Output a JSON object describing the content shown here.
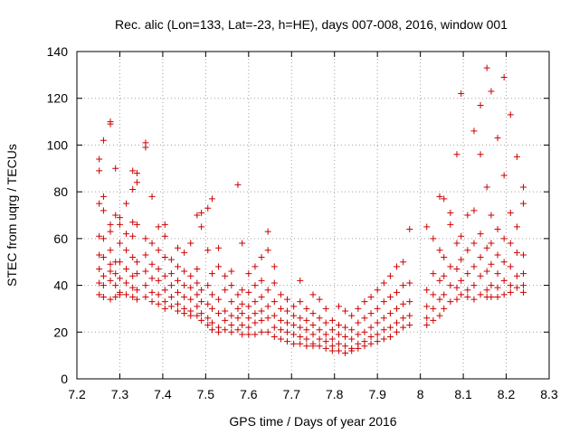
{
  "chart_data": {
    "type": "scatter",
    "title": "Rec. alic (Lon=133, Lat=-23, h=HE), days 007-008, 2016, window 001",
    "xlabel": "GPS time / Days of year 2016",
    "ylabel": "STEC from uqrg / TECUs",
    "xlim": [
      7.2,
      8.3
    ],
    "ylim": [
      0,
      140
    ],
    "grid": true,
    "marker": "+",
    "color": "#cc0000",
    "x_ticks": [
      "7.2",
      "7.3",
      "7.4",
      "7.5",
      "7.6",
      "7.7",
      "7.8",
      "7.9",
      "8",
      "8.1",
      "8.2",
      "8.3"
    ],
    "y_ticks": [
      "0",
      "20",
      "40",
      "60",
      "80",
      "100",
      "120",
      "140"
    ],
    "points": [
      [
        7.252,
        94
      ],
      [
        7.252,
        89
      ],
      [
        7.252,
        75
      ],
      [
        7.252,
        61
      ],
      [
        7.252,
        53
      ],
      [
        7.252,
        47
      ],
      [
        7.252,
        41
      ],
      [
        7.252,
        36
      ],
      [
        7.262,
        102
      ],
      [
        7.262,
        78
      ],
      [
        7.262,
        72
      ],
      [
        7.262,
        60
      ],
      [
        7.262,
        52
      ],
      [
        7.262,
        44
      ],
      [
        7.262,
        40
      ],
      [
        7.262,
        35
      ],
      [
        7.278,
        110
      ],
      [
        7.278,
        109
      ],
      [
        7.278,
        66
      ],
      [
        7.278,
        63
      ],
      [
        7.278,
        55
      ],
      [
        7.278,
        49
      ],
      [
        7.278,
        46
      ],
      [
        7.278,
        42
      ],
      [
        7.278,
        34
      ],
      [
        7.29,
        90
      ],
      [
        7.29,
        70
      ],
      [
        7.29,
        50
      ],
      [
        7.29,
        45
      ],
      [
        7.29,
        40
      ],
      [
        7.29,
        35
      ],
      [
        7.3,
        69
      ],
      [
        7.3,
        66
      ],
      [
        7.3,
        58
      ],
      [
        7.3,
        50
      ],
      [
        7.3,
        43
      ],
      [
        7.3,
        37
      ],
      [
        7.3,
        36
      ],
      [
        7.315,
        75
      ],
      [
        7.315,
        62
      ],
      [
        7.315,
        55
      ],
      [
        7.315,
        47
      ],
      [
        7.315,
        41
      ],
      [
        7.315,
        36
      ],
      [
        7.33,
        89
      ],
      [
        7.33,
        81
      ],
      [
        7.33,
        67
      ],
      [
        7.33,
        61
      ],
      [
        7.33,
        52
      ],
      [
        7.33,
        44
      ],
      [
        7.33,
        39
      ],
      [
        7.33,
        35
      ],
      [
        7.34,
        88
      ],
      [
        7.34,
        84
      ],
      [
        7.34,
        66
      ],
      [
        7.34,
        50
      ],
      [
        7.34,
        45
      ],
      [
        7.34,
        38
      ],
      [
        7.34,
        34
      ],
      [
        7.36,
        101
      ],
      [
        7.36,
        99
      ],
      [
        7.36,
        60
      ],
      [
        7.36,
        53
      ],
      [
        7.36,
        46
      ],
      [
        7.36,
        40
      ],
      [
        7.36,
        35
      ],
      [
        7.375,
        78
      ],
      [
        7.375,
        58
      ],
      [
        7.375,
        49
      ],
      [
        7.375,
        43
      ],
      [
        7.375,
        37
      ],
      [
        7.375,
        33
      ],
      [
        7.39,
        65
      ],
      [
        7.39,
        55
      ],
      [
        7.39,
        47
      ],
      [
        7.39,
        42
      ],
      [
        7.39,
        36
      ],
      [
        7.39,
        32
      ],
      [
        7.405,
        66
      ],
      [
        7.405,
        61
      ],
      [
        7.405,
        52
      ],
      [
        7.405,
        44
      ],
      [
        7.405,
        38
      ],
      [
        7.405,
        33
      ],
      [
        7.405,
        30
      ],
      [
        7.42,
        51
      ],
      [
        7.42,
        45
      ],
      [
        7.42,
        40
      ],
      [
        7.42,
        35
      ],
      [
        7.42,
        31
      ],
      [
        7.435,
        56
      ],
      [
        7.435,
        48
      ],
      [
        7.435,
        42
      ],
      [
        7.435,
        37
      ],
      [
        7.435,
        32
      ],
      [
        7.435,
        29
      ],
      [
        7.45,
        54
      ],
      [
        7.45,
        46
      ],
      [
        7.45,
        40
      ],
      [
        7.45,
        35
      ],
      [
        7.45,
        30
      ],
      [
        7.45,
        28
      ],
      [
        7.465,
        58
      ],
      [
        7.465,
        44
      ],
      [
        7.465,
        39
      ],
      [
        7.465,
        34
      ],
      [
        7.465,
        29
      ],
      [
        7.465,
        27
      ],
      [
        7.48,
        70
      ],
      [
        7.48,
        47
      ],
      [
        7.48,
        41
      ],
      [
        7.48,
        36
      ],
      [
        7.48,
        31
      ],
      [
        7.48,
        27
      ],
      [
        7.49,
        71
      ],
      [
        7.49,
        65
      ],
      [
        7.49,
        38
      ],
      [
        7.49,
        33
      ],
      [
        7.49,
        28
      ],
      [
        7.49,
        25
      ],
      [
        7.505,
        73
      ],
      [
        7.505,
        55
      ],
      [
        7.505,
        40
      ],
      [
        7.505,
        32
      ],
      [
        7.505,
        26
      ],
      [
        7.505,
        23
      ],
      [
        7.515,
        77
      ],
      [
        7.515,
        45
      ],
      [
        7.515,
        36
      ],
      [
        7.515,
        30
      ],
      [
        7.515,
        24
      ],
      [
        7.515,
        21
      ],
      [
        7.53,
        56
      ],
      [
        7.53,
        48
      ],
      [
        7.53,
        34
      ],
      [
        7.53,
        28
      ],
      [
        7.53,
        22
      ],
      [
        7.53,
        20
      ],
      [
        7.545,
        44
      ],
      [
        7.545,
        38
      ],
      [
        7.545,
        29
      ],
      [
        7.545,
        25
      ],
      [
        7.545,
        21
      ],
      [
        7.56,
        46
      ],
      [
        7.56,
        40
      ],
      [
        7.56,
        33
      ],
      [
        7.56,
        27
      ],
      [
        7.56,
        23
      ],
      [
        7.56,
        20
      ],
      [
        7.575,
        83
      ],
      [
        7.575,
        36
      ],
      [
        7.575,
        30
      ],
      [
        7.575,
        26
      ],
      [
        7.575,
        21
      ],
      [
        7.585,
        58
      ],
      [
        7.585,
        38
      ],
      [
        7.585,
        32
      ],
      [
        7.585,
        28
      ],
      [
        7.585,
        23
      ],
      [
        7.585,
        19
      ],
      [
        7.6,
        45
      ],
      [
        7.6,
        37
      ],
      [
        7.6,
        31
      ],
      [
        7.6,
        26
      ],
      [
        7.6,
        22
      ],
      [
        7.6,
        19
      ],
      [
        7.615,
        48
      ],
      [
        7.615,
        40
      ],
      [
        7.615,
        33
      ],
      [
        7.615,
        28
      ],
      [
        7.615,
        24
      ],
      [
        7.615,
        19
      ],
      [
        7.63,
        52
      ],
      [
        7.63,
        42
      ],
      [
        7.63,
        35
      ],
      [
        7.63,
        29
      ],
      [
        7.63,
        25
      ],
      [
        7.63,
        20
      ],
      [
        7.645,
        63
      ],
      [
        7.645,
        55
      ],
      [
        7.645,
        38
      ],
      [
        7.645,
        31
      ],
      [
        7.645,
        26
      ],
      [
        7.645,
        20
      ],
      [
        7.66,
        48
      ],
      [
        7.66,
        41
      ],
      [
        7.66,
        33
      ],
      [
        7.66,
        27
      ],
      [
        7.66,
        22
      ],
      [
        7.66,
        18
      ],
      [
        7.675,
        36
      ],
      [
        7.675,
        30
      ],
      [
        7.675,
        25
      ],
      [
        7.675,
        21
      ],
      [
        7.675,
        17
      ],
      [
        7.69,
        34
      ],
      [
        7.69,
        29
      ],
      [
        7.69,
        24
      ],
      [
        7.69,
        20
      ],
      [
        7.69,
        16
      ],
      [
        7.705,
        31
      ],
      [
        7.705,
        27
      ],
      [
        7.705,
        23
      ],
      [
        7.705,
        19
      ],
      [
        7.705,
        15
      ],
      [
        7.72,
        42
      ],
      [
        7.72,
        33
      ],
      [
        7.72,
        26
      ],
      [
        7.72,
        22
      ],
      [
        7.72,
        18
      ],
      [
        7.72,
        15
      ],
      [
        7.735,
        30
      ],
      [
        7.735,
        25
      ],
      [
        7.735,
        21
      ],
      [
        7.735,
        17
      ],
      [
        7.735,
        14
      ],
      [
        7.75,
        36
      ],
      [
        7.75,
        28
      ],
      [
        7.75,
        23
      ],
      [
        7.75,
        19
      ],
      [
        7.75,
        15
      ],
      [
        7.75,
        14
      ],
      [
        7.765,
        34
      ],
      [
        7.765,
        26
      ],
      [
        7.765,
        21
      ],
      [
        7.765,
        17
      ],
      [
        7.765,
        14
      ],
      [
        7.78,
        30
      ],
      [
        7.78,
        24
      ],
      [
        7.78,
        19
      ],
      [
        7.78,
        16
      ],
      [
        7.78,
        13
      ],
      [
        7.795,
        25
      ],
      [
        7.795,
        21
      ],
      [
        7.795,
        17
      ],
      [
        7.795,
        14
      ],
      [
        7.795,
        12
      ],
      [
        7.81,
        31
      ],
      [
        7.81,
        23
      ],
      [
        7.81,
        19
      ],
      [
        7.81,
        15
      ],
      [
        7.81,
        12
      ],
      [
        7.825,
        29
      ],
      [
        7.825,
        22
      ],
      [
        7.825,
        18
      ],
      [
        7.825,
        14
      ],
      [
        7.825,
        11
      ],
      [
        7.84,
        27
      ],
      [
        7.84,
        21
      ],
      [
        7.84,
        17
      ],
      [
        7.84,
        13
      ],
      [
        7.84,
        12
      ],
      [
        7.855,
        30
      ],
      [
        7.855,
        24
      ],
      [
        7.855,
        19
      ],
      [
        7.855,
        15
      ],
      [
        7.855,
        13
      ],
      [
        7.87,
        33
      ],
      [
        7.87,
        26
      ],
      [
        7.87,
        20
      ],
      [
        7.87,
        16
      ],
      [
        7.87,
        14
      ],
      [
        7.885,
        35
      ],
      [
        7.885,
        28
      ],
      [
        7.885,
        22
      ],
      [
        7.885,
        18
      ],
      [
        7.885,
        15
      ],
      [
        7.9,
        38
      ],
      [
        7.9,
        30
      ],
      [
        7.9,
        24
      ],
      [
        7.9,
        19
      ],
      [
        7.9,
        16
      ],
      [
        7.915,
        41
      ],
      [
        7.915,
        33
      ],
      [
        7.915,
        26
      ],
      [
        7.915,
        21
      ],
      [
        7.915,
        17
      ],
      [
        7.93,
        44
      ],
      [
        7.93,
        35
      ],
      [
        7.93,
        28
      ],
      [
        7.93,
        22
      ],
      [
        7.93,
        18
      ],
      [
        7.945,
        48
      ],
      [
        7.945,
        37
      ],
      [
        7.945,
        30
      ],
      [
        7.945,
        24
      ],
      [
        7.945,
        20
      ],
      [
        7.96,
        50
      ],
      [
        7.96,
        40
      ],
      [
        7.96,
        32
      ],
      [
        7.96,
        26
      ],
      [
        7.96,
        22
      ],
      [
        7.975,
        64
      ],
      [
        7.975,
        41
      ],
      [
        7.975,
        33
      ],
      [
        7.975,
        27
      ],
      [
        7.975,
        23
      ],
      [
        8.015,
        65
      ],
      [
        8.015,
        38
      ],
      [
        8.015,
        31
      ],
      [
        8.015,
        26
      ],
      [
        8.015,
        23
      ],
      [
        8.03,
        60
      ],
      [
        8.03,
        45
      ],
      [
        8.03,
        36
      ],
      [
        8.03,
        30
      ],
      [
        8.03,
        25
      ],
      [
        8.045,
        78
      ],
      [
        8.045,
        55
      ],
      [
        8.045,
        42
      ],
      [
        8.045,
        34
      ],
      [
        8.045,
        27
      ],
      [
        8.055,
        77
      ],
      [
        8.055,
        52
      ],
      [
        8.055,
        44
      ],
      [
        8.055,
        36
      ],
      [
        8.055,
        30
      ],
      [
        8.07,
        71
      ],
      [
        8.07,
        66
      ],
      [
        8.07,
        48
      ],
      [
        8.07,
        40
      ],
      [
        8.07,
        33
      ],
      [
        8.085,
        96
      ],
      [
        8.085,
        58
      ],
      [
        8.085,
        47
      ],
      [
        8.085,
        39
      ],
      [
        8.085,
        34
      ],
      [
        8.095,
        122
      ],
      [
        8.095,
        61
      ],
      [
        8.095,
        51
      ],
      [
        8.095,
        42
      ],
      [
        8.095,
        36
      ],
      [
        8.11,
        70
      ],
      [
        8.11,
        55
      ],
      [
        8.11,
        45
      ],
      [
        8.11,
        38
      ],
      [
        8.11,
        35
      ],
      [
        8.125,
        106
      ],
      [
        8.125,
        72
      ],
      [
        8.125,
        58
      ],
      [
        8.125,
        48
      ],
      [
        8.125,
        40
      ],
      [
        8.125,
        34
      ],
      [
        8.14,
        117
      ],
      [
        8.14,
        96
      ],
      [
        8.14,
        62
      ],
      [
        8.14,
        52
      ],
      [
        8.14,
        44
      ],
      [
        8.14,
        36
      ],
      [
        8.155,
        133
      ],
      [
        8.155,
        82
      ],
      [
        8.155,
        56
      ],
      [
        8.155,
        46
      ],
      [
        8.155,
        38
      ],
      [
        8.155,
        35
      ],
      [
        8.165,
        123
      ],
      [
        8.165,
        70
      ],
      [
        8.165,
        58
      ],
      [
        8.165,
        49
      ],
      [
        8.165,
        40
      ],
      [
        8.165,
        35
      ],
      [
        8.18,
        103
      ],
      [
        8.18,
        64
      ],
      [
        8.18,
        53
      ],
      [
        8.18,
        45
      ],
      [
        8.18,
        39
      ],
      [
        8.18,
        35
      ],
      [
        8.195,
        129
      ],
      [
        8.195,
        87
      ],
      [
        8.195,
        60
      ],
      [
        8.195,
        50
      ],
      [
        8.195,
        42
      ],
      [
        8.195,
        36
      ],
      [
        8.21,
        113
      ],
      [
        8.21,
        71
      ],
      [
        8.21,
        58
      ],
      [
        8.21,
        48
      ],
      [
        8.21,
        40
      ],
      [
        8.21,
        37
      ],
      [
        8.225,
        95
      ],
      [
        8.225,
        65
      ],
      [
        8.225,
        54
      ],
      [
        8.225,
        44
      ],
      [
        8.225,
        39
      ],
      [
        8.24,
        82
      ],
      [
        8.24,
        75
      ],
      [
        8.24,
        53
      ],
      [
        8.24,
        45
      ],
      [
        8.24,
        40
      ],
      [
        8.24,
        37
      ]
    ]
  }
}
